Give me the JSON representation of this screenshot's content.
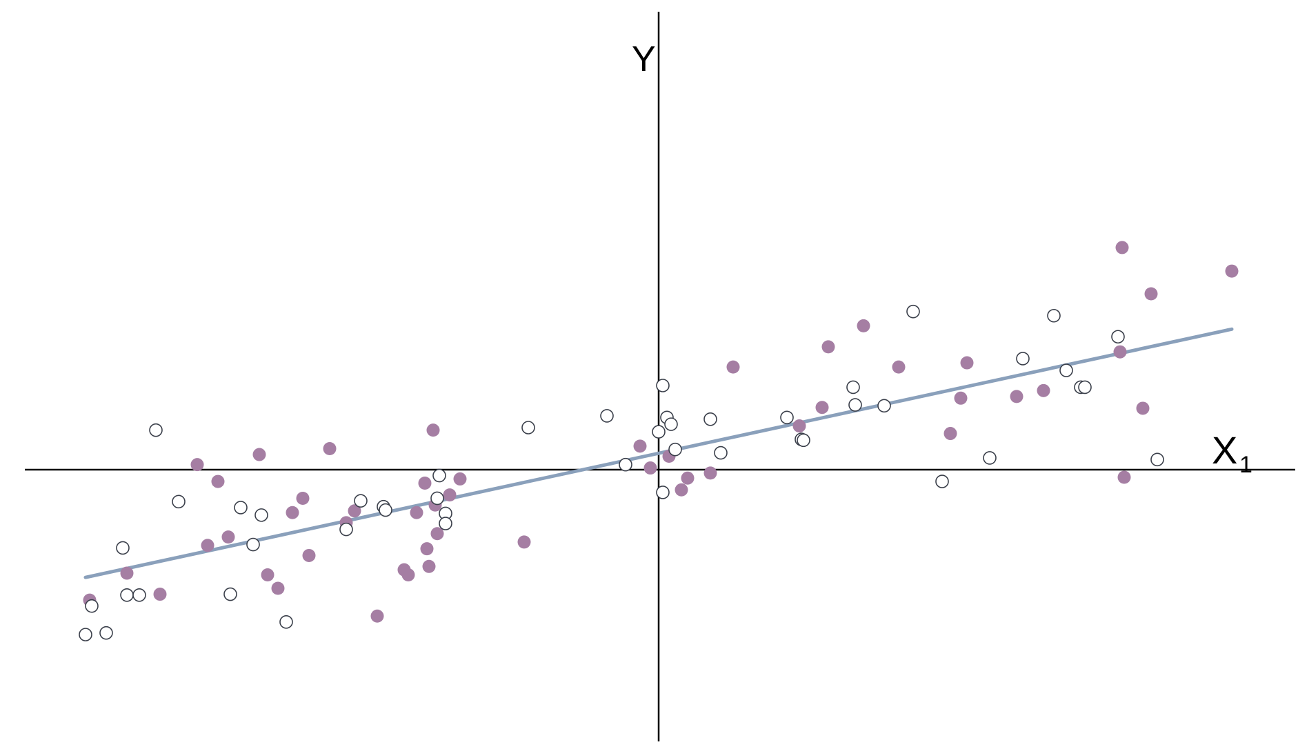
{
  "chart_data": {
    "type": "scatter",
    "x_label": "X",
    "x_label_subscript": "1",
    "y_label": "Y",
    "xlim": [
      -3.05,
      3.05
    ],
    "ylim": [
      -3.1,
      4.5
    ],
    "grid": false,
    "axes_through_origin": true,
    "colors": {
      "filled_points": "#a57ea3",
      "open_points_stroke": "#3a3f4a",
      "regression_line": "#8aa0bb",
      "axes": "#000000"
    },
    "series": [
      {
        "marker": "filled-circle",
        "points": [
          [
            -2.75,
            -1.55
          ],
          [
            -2.57,
            -1.23
          ],
          [
            -2.41,
            -1.48
          ],
          [
            -2.23,
            0.06
          ],
          [
            -2.18,
            -0.9
          ],
          [
            -2.13,
            -0.14
          ],
          [
            -2.08,
            -0.8
          ],
          [
            -1.93,
            0.18
          ],
          [
            -1.89,
            -1.25
          ],
          [
            -1.84,
            -1.41
          ],
          [
            -1.77,
            -0.51
          ],
          [
            -1.72,
            -0.34
          ],
          [
            -1.69,
            -1.02
          ],
          [
            -1.59,
            0.25
          ],
          [
            -1.51,
            -0.63
          ],
          [
            -1.47,
            -0.49
          ],
          [
            -1.36,
            -1.74
          ],
          [
            -1.23,
            -1.19
          ],
          [
            -1.21,
            -1.25
          ],
          [
            -1.17,
            -0.51
          ],
          [
            -1.13,
            -0.16
          ],
          [
            -1.12,
            -0.94
          ],
          [
            -1.11,
            -1.15
          ],
          [
            -1.09,
            0.47
          ],
          [
            -1.08,
            -0.42
          ],
          [
            -1.07,
            -0.76
          ],
          [
            -1.01,
            -0.3
          ],
          [
            -0.96,
            -0.11
          ],
          [
            -0.65,
            -0.86
          ],
          [
            -0.09,
            0.28
          ],
          [
            -0.04,
            0.02
          ],
          [
            0.05,
            0.16
          ],
          [
            0.11,
            -0.24
          ],
          [
            0.14,
            -0.1
          ],
          [
            0.25,
            -0.04
          ],
          [
            0.36,
            1.22
          ],
          [
            0.68,
            0.52
          ],
          [
            0.79,
            0.74
          ],
          [
            0.82,
            1.46
          ],
          [
            0.99,
            1.71
          ],
          [
            1.16,
            1.22
          ],
          [
            1.41,
            0.43
          ],
          [
            1.46,
            0.85
          ],
          [
            1.49,
            1.27
          ],
          [
            1.73,
            0.87
          ],
          [
            1.86,
            0.94
          ],
          [
            2.23,
            1.4
          ],
          [
            2.24,
            2.64
          ],
          [
            2.25,
            -0.09
          ],
          [
            2.34,
            0.73
          ],
          [
            2.38,
            2.09
          ],
          [
            2.77,
            2.36
          ]
        ]
      },
      {
        "marker": "open-circle",
        "points": [
          [
            -2.77,
            -1.96
          ],
          [
            -2.74,
            -1.62
          ],
          [
            -2.67,
            -1.94
          ],
          [
            -2.59,
            -0.93
          ],
          [
            -2.57,
            -1.49
          ],
          [
            -2.51,
            -1.49
          ],
          [
            -2.43,
            0.47
          ],
          [
            -2.32,
            -0.38
          ],
          [
            -2.07,
            -1.48
          ],
          [
            -2.02,
            -0.45
          ],
          [
            -1.96,
            -0.89
          ],
          [
            -1.92,
            -0.54
          ],
          [
            -1.8,
            -1.81
          ],
          [
            -1.51,
            -0.71
          ],
          [
            -1.44,
            -0.37
          ],
          [
            -1.33,
            -0.44
          ],
          [
            -1.32,
            -0.48
          ],
          [
            -1.07,
            -0.34
          ],
          [
            -1.06,
            -0.07
          ],
          [
            -1.03,
            -0.52
          ],
          [
            -1.03,
            -0.64
          ],
          [
            -0.63,
            0.5
          ],
          [
            -0.25,
            0.64
          ],
          [
            -0.16,
            0.06
          ],
          [
            0.0,
            0.45
          ],
          [
            0.02,
            1.0
          ],
          [
            0.02,
            -0.27
          ],
          [
            0.04,
            0.62
          ],
          [
            0.06,
            0.54
          ],
          [
            0.08,
            0.24
          ],
          [
            0.25,
            0.6
          ],
          [
            0.3,
            0.2
          ],
          [
            0.62,
            0.62
          ],
          [
            0.69,
            0.36
          ],
          [
            0.7,
            0.35
          ],
          [
            0.94,
            0.98
          ],
          [
            0.95,
            0.77
          ],
          [
            1.09,
            0.76
          ],
          [
            1.23,
            1.88
          ],
          [
            1.37,
            -0.14
          ],
          [
            1.6,
            0.14
          ],
          [
            1.76,
            1.32
          ],
          [
            1.91,
            1.83
          ],
          [
            1.97,
            1.18
          ],
          [
            2.04,
            0.98
          ],
          [
            2.06,
            0.98
          ],
          [
            2.22,
            1.58
          ],
          [
            2.41,
            0.12
          ]
        ]
      }
    ],
    "regression_line": {
      "x": [
        -2.77,
        2.77
      ],
      "y": [
        -1.28,
        1.67
      ]
    }
  }
}
